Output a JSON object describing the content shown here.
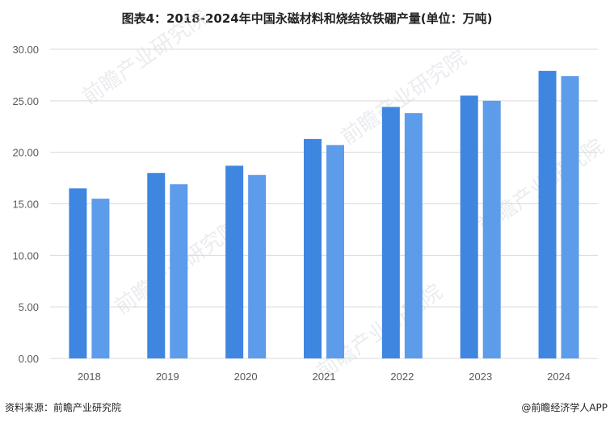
{
  "title": "图表4：2018-2024年中国永磁材料和烧结钕铁硼产量(单位：万吨)",
  "source_left": "资料来源：前瞻产业研究院",
  "source_right": "@前瞻经济学人APP",
  "watermark_text": "前瞻产业研究院",
  "colors": {
    "series1": "#3f86e0",
    "series2": "#5c9cea",
    "grid": "#d9d9d9",
    "axis_text": "#595959"
  },
  "chart_data": {
    "type": "bar",
    "categories": [
      "2018",
      "2019",
      "2020",
      "2021",
      "2022",
      "2023",
      "2024"
    ],
    "series": [
      {
        "values": [
          16.5,
          18.0,
          18.7,
          21.3,
          24.4,
          25.5,
          27.9
        ]
      },
      {
        "values": [
          15.5,
          16.9,
          17.8,
          20.7,
          23.8,
          25.0,
          27.4
        ]
      }
    ],
    "ylim": [
      0,
      30
    ],
    "yticks": [
      "0.00",
      "5.00",
      "10.00",
      "15.00",
      "20.00",
      "25.00",
      "30.00"
    ],
    "grid": true,
    "legend": "none"
  }
}
